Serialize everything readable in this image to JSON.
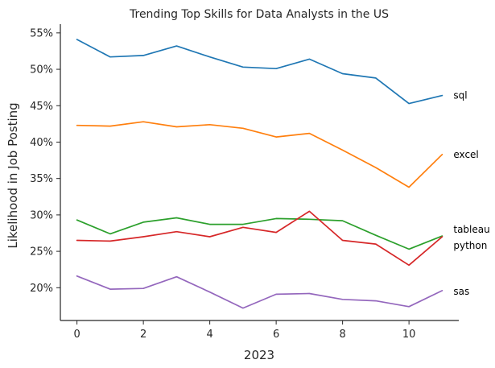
{
  "chart_data": {
    "type": "line",
    "title": "Trending Top Skills for Data Analysts in the US",
    "xlabel": "2023",
    "ylabel": "Likelihood in Job Posting",
    "x": [
      0,
      1,
      2,
      3,
      4,
      5,
      6,
      7,
      8,
      9,
      10,
      11
    ],
    "xlim": [
      -0.5,
      11.5
    ],
    "ylim": [
      15.5,
      56.2
    ],
    "x_ticks": [
      0,
      2,
      4,
      6,
      8,
      10
    ],
    "x_tick_labels": [
      "0",
      "2",
      "4",
      "6",
      "8",
      "10"
    ],
    "y_ticks": [
      20,
      25,
      30,
      35,
      40,
      45,
      50,
      55
    ],
    "y_tick_labels": [
      "20%",
      "25%",
      "30%",
      "35%",
      "40%",
      "45%",
      "50%",
      "55%"
    ],
    "grid": false,
    "legend": "none (labels at line ends)",
    "series": [
      {
        "name": "sql",
        "color": "#1f77b4",
        "label_y": 46.4,
        "values": [
          54.1,
          51.7,
          51.9,
          53.2,
          51.7,
          50.3,
          50.1,
          51.4,
          49.4,
          48.8,
          45.3,
          46.4
        ]
      },
      {
        "name": "excel",
        "color": "#ff7f0e",
        "label_y": 38.3,
        "values": [
          42.3,
          42.2,
          42.8,
          42.1,
          42.4,
          41.9,
          40.7,
          41.2,
          38.9,
          36.5,
          33.8,
          38.3
        ]
      },
      {
        "name": "tableau",
        "color": "#2ca02c",
        "label_y": 28.0,
        "values": [
          29.3,
          27.4,
          29.0,
          29.6,
          28.7,
          28.7,
          29.5,
          29.4,
          29.2,
          27.2,
          25.3,
          27.1
        ]
      },
      {
        "name": "python",
        "color": "#d62728",
        "label_y": 25.8,
        "values": [
          26.5,
          26.4,
          27.0,
          27.7,
          27.0,
          28.3,
          27.6,
          30.5,
          26.5,
          26.0,
          23.1,
          27.0
        ]
      },
      {
        "name": "sas",
        "color": "#9467bd",
        "label_y": 19.5,
        "values": [
          21.6,
          19.8,
          19.9,
          21.5,
          19.4,
          17.2,
          19.1,
          19.2,
          18.4,
          18.2,
          17.4,
          19.6
        ]
      }
    ]
  }
}
